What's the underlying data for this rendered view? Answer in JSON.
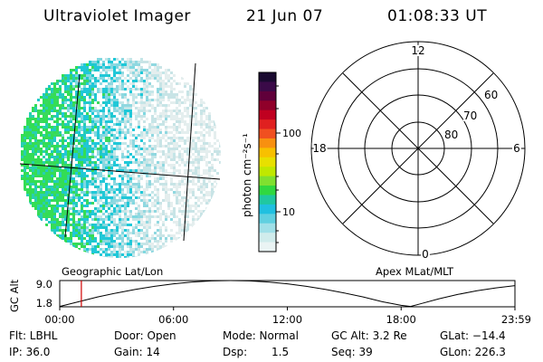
{
  "header": {
    "instrument": "Ultraviolet Imager",
    "date": "21 Jun 07",
    "time": "01:08:33 UT"
  },
  "colorbar": {
    "label": "photon cm⁻²s⁻¹",
    "ticks": [
      "100",
      "10"
    ],
    "colors": [
      "#1a0a30",
      "#3a0a48",
      "#60003a",
      "#90002a",
      "#c00020",
      "#e02020",
      "#f05020",
      "#f89010",
      "#f8c000",
      "#e8e000",
      "#c0e800",
      "#80e030",
      "#30d840",
      "#20c8a0",
      "#20c0e0",
      "#60d0e0",
      "#a0e0e8",
      "#d0ecec",
      "#eaf4f4"
    ]
  },
  "polar_plot": {
    "ring_labels": [
      "60",
      "70",
      "80"
    ],
    "mlt_labels": {
      "top": "12",
      "left": "18",
      "right": "6",
      "bottom": "0"
    }
  },
  "map_labels": {
    "left": "Geographic Lat/Lon",
    "right": "Apex MLat/MLT"
  },
  "altitude_plot": {
    "ylabel": "GC Alt",
    "yticks": [
      "9.0",
      "1.8"
    ],
    "xticks": [
      "00:00",
      "06:00",
      "12:00",
      "18:00",
      "23:59"
    ],
    "current_time_color": "#d00000"
  },
  "chart_data": {
    "type": "line",
    "title": "",
    "xlabel": "",
    "ylabel": "GC Alt",
    "ylim": [
      1.8,
      9.0
    ],
    "xlim": [
      0,
      24
    ],
    "x": [
      0,
      1,
      2,
      3,
      4,
      5,
      6,
      7,
      8,
      9,
      10,
      11,
      12,
      13,
      14,
      15,
      16,
      17,
      18,
      18.5,
      19,
      20,
      21,
      22,
      23,
      24
    ],
    "series": [
      {
        "values": [
          1.9,
          3.2,
          4.5,
          5.6,
          6.6,
          7.4,
          8.1,
          8.6,
          8.9,
          9.0,
          8.9,
          8.6,
          8.1,
          7.4,
          6.6,
          5.6,
          4.5,
          3.2,
          2.2,
          1.9,
          2.6,
          4.0,
          5.2,
          6.2,
          7.0,
          7.6
        ]
      }
    ],
    "current_time": 1.14
  },
  "status": {
    "filter": "Flt: LBHL",
    "door": "Door: Open",
    "mode": "Mode: Normal",
    "gc_alt": "GC Alt: 3.2 Re",
    "glat": "GLat: −14.4",
    "ip": "IP: 36.0",
    "gain": "Gain: 14",
    "dsp_label": "Dsp:",
    "dsp_value": "1.5",
    "seq": "Seq: 39",
    "glon": "GLon: 226.3"
  }
}
